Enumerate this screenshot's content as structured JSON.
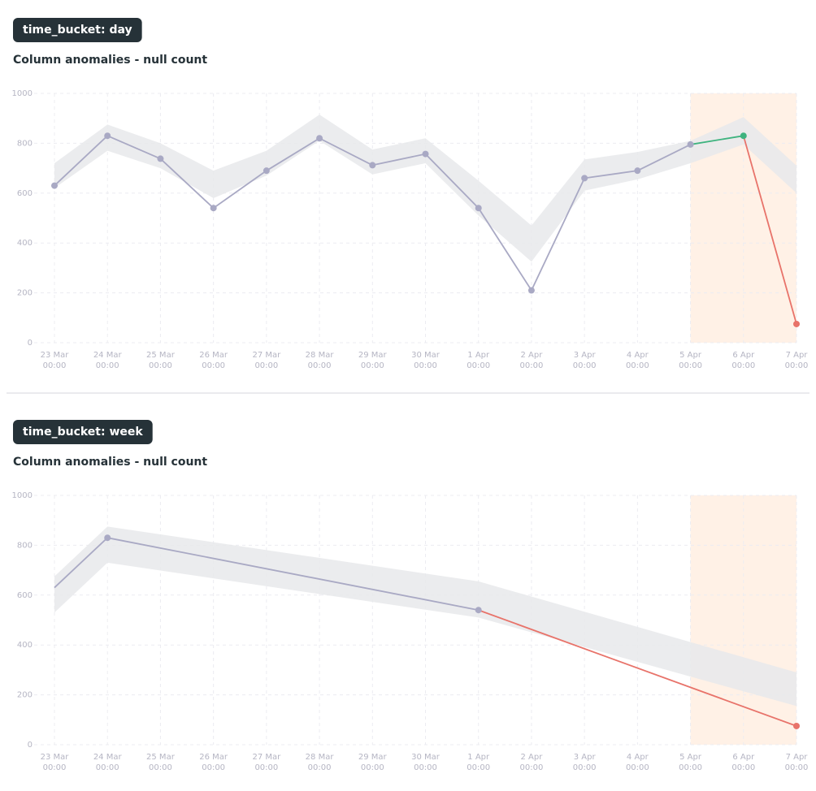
{
  "chart_data": [
    {
      "type": "line",
      "label": "time_bucket: day",
      "title": "Column anomalies - null count",
      "categories": [
        "23 Mar",
        "24 Mar",
        "25 Mar",
        "26 Mar",
        "27 Mar",
        "28 Mar",
        "29 Mar",
        "30 Mar",
        "1 Apr",
        "2 Apr",
        "3 Apr",
        "4 Apr",
        "5 Apr",
        "6 Apr",
        "7 Apr"
      ],
      "category_sublabels": [
        "00:00",
        "00:00",
        "00:00",
        "00:00",
        "00:00",
        "00:00",
        "00:00",
        "00:00",
        "00:00",
        "00:00",
        "00:00",
        "00:00",
        "00:00",
        "00:00",
        "00:00"
      ],
      "x": [
        "23 Mar",
        "24 Mar",
        "25 Mar",
        "26 Mar",
        "27 Mar",
        "28 Mar",
        "29 Mar",
        "30 Mar",
        "1 Apr",
        "2 Apr",
        "3 Apr",
        "4 Apr",
        "5 Apr",
        "6 Apr",
        "7 Apr"
      ],
      "values": [
        630,
        830,
        738,
        540,
        690,
        820,
        712,
        757,
        540,
        210,
        660,
        690,
        795,
        830,
        75
      ],
      "point_colors": [
        "#a9a9c4",
        "#a9a9c4",
        "#a9a9c4",
        "#a9a9c4",
        "#a9a9c4",
        "#a9a9c4",
        "#a9a9c4",
        "#a9a9c4",
        "#a9a9c4",
        "#a9a9c4",
        "#a9a9c4",
        "#a9a9c4",
        "#a9a9c4",
        "#3fb37f",
        "#e8736a"
      ],
      "band_lower": [
        620,
        770,
        700,
        580,
        670,
        810,
        675,
        720,
        510,
        325,
        610,
        655,
        720,
        795,
        600
      ],
      "band_upper": [
        720,
        875,
        800,
        690,
        770,
        915,
        775,
        820,
        650,
        470,
        735,
        765,
        810,
        905,
        710
      ],
      "band_color": "#e8e9eb",
      "highlight_from": "5 Apr",
      "highlight_to": "7 Apr",
      "highlight_color": "#fff1e6",
      "ylim": [
        0,
        1000
      ],
      "yticks": [
        0,
        200,
        400,
        600,
        800,
        1000
      ],
      "grid": true
    },
    {
      "type": "line",
      "label": "time_bucket: week",
      "title": "Column anomalies - null count",
      "categories": [
        "23 Mar",
        "24 Mar",
        "25 Mar",
        "26 Mar",
        "27 Mar",
        "28 Mar",
        "29 Mar",
        "30 Mar",
        "1 Apr",
        "2 Apr",
        "3 Apr",
        "4 Apr",
        "5 Apr",
        "6 Apr",
        "7 Apr"
      ],
      "category_sublabels": [
        "00:00",
        "00:00",
        "00:00",
        "00:00",
        "00:00",
        "00:00",
        "00:00",
        "00:00",
        "00:00",
        "00:00",
        "00:00",
        "00:00",
        "00:00",
        "00:00",
        "00:00"
      ],
      "x": [
        "23 Mar",
        "24 Mar",
        "1 Apr",
        "7 Apr"
      ],
      "values": [
        630,
        830,
        540,
        75
      ],
      "point_colors": [
        null,
        "#a9a9c4",
        "#a9a9c4",
        "#e8736a"
      ],
      "band_lower": [
        530,
        730,
        510,
        155
      ],
      "band_upper": [
        675,
        875,
        655,
        290
      ],
      "band_color": "#e8e9eb",
      "highlight_from": "5 Apr",
      "highlight_to": "7 Apr",
      "highlight_color": "#fff1e6",
      "ylim": [
        0,
        1000
      ],
      "yticks": [
        0,
        200,
        400,
        600,
        800,
        1000
      ],
      "grid": true
    }
  ]
}
